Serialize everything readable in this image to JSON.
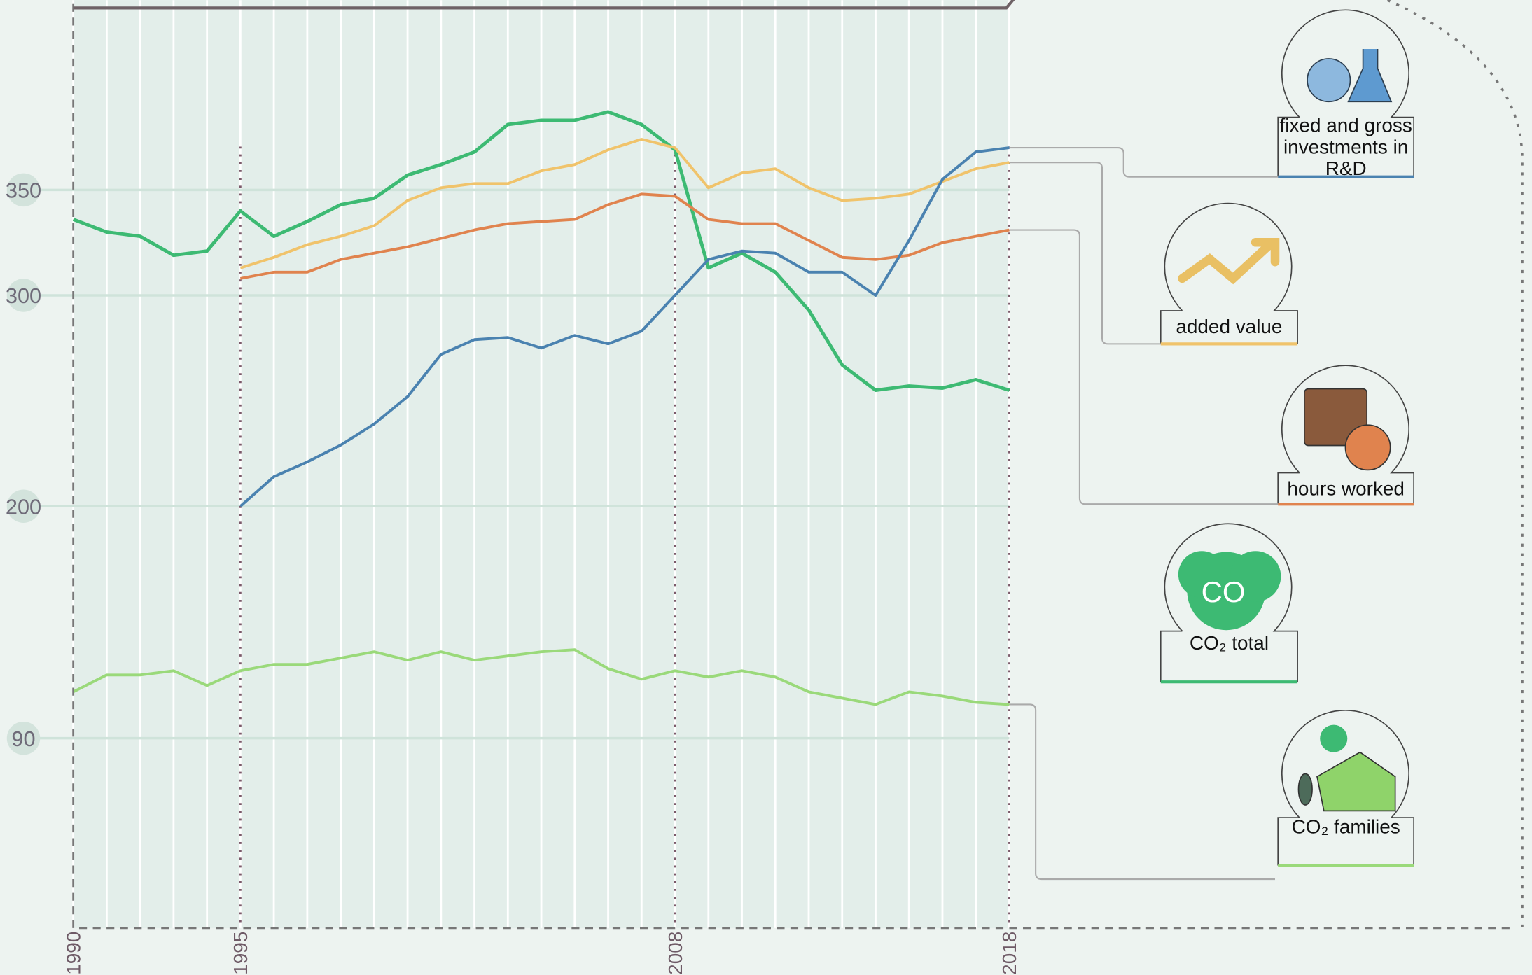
{
  "chart_data": {
    "type": "line",
    "x": [
      1990,
      1991,
      1992,
      1993,
      1994,
      1995,
      1996,
      1997,
      1998,
      1999,
      2000,
      2001,
      2002,
      2003,
      2004,
      2005,
      2006,
      2007,
      2008,
      2009,
      2010,
      2011,
      2012,
      2013,
      2014,
      2015,
      2016,
      2017,
      2018
    ],
    "xlim": [
      1990,
      2018
    ],
    "xticks": [
      1990,
      1995,
      2008,
      2018
    ],
    "ylim": [
      0,
      440
    ],
    "yticks": [
      90,
      200,
      300,
      350
    ],
    "series": [
      {
        "name": "CO₂ total",
        "color": "#3dba73",
        "values": [
          336,
          330,
          328,
          319,
          321,
          340,
          328,
          335,
          343,
          346,
          357,
          362,
          368,
          381,
          383,
          383,
          387,
          381,
          369,
          313,
          320,
          311,
          293,
          267,
          255,
          257,
          256,
          260,
          255
        ]
      },
      {
        "name": "added value",
        "color": "#f0c36b",
        "values": [
          null,
          null,
          null,
          null,
          null,
          313,
          318,
          324,
          328,
          333,
          345,
          351,
          353,
          353,
          359,
          362,
          369,
          374,
          370,
          351,
          358,
          360,
          351,
          345,
          346,
          348,
          354,
          360,
          363
        ]
      },
      {
        "name": "hours worked",
        "color": "#e0834e",
        "values": [
          null,
          null,
          null,
          null,
          null,
          308,
          311,
          311,
          317,
          320,
          323,
          327,
          331,
          334,
          335,
          336,
          343,
          348,
          347,
          336,
          334,
          334,
          326,
          318,
          317,
          319,
          325,
          328,
          331
        ]
      },
      {
        "name": "fixed and gross investments in R&D",
        "color": "#4a82b0",
        "values": [
          null,
          null,
          null,
          null,
          null,
          200,
          214,
          221,
          229,
          239,
          252,
          272,
          279,
          280,
          275,
          281,
          277,
          283,
          300,
          317,
          321,
          320,
          311,
          311,
          300,
          326,
          355,
          368,
          370
        ]
      },
      {
        "name": "CO₂ families",
        "color": "#9ad97a",
        "values": [
          112,
          120,
          120,
          122,
          115,
          122,
          125,
          125,
          128,
          131,
          127,
          131,
          127,
          129,
          131,
          132,
          123,
          118,
          122,
          119,
          122,
          119,
          112,
          109,
          106,
          112,
          110,
          107,
          106
        ]
      }
    ]
  }
}
